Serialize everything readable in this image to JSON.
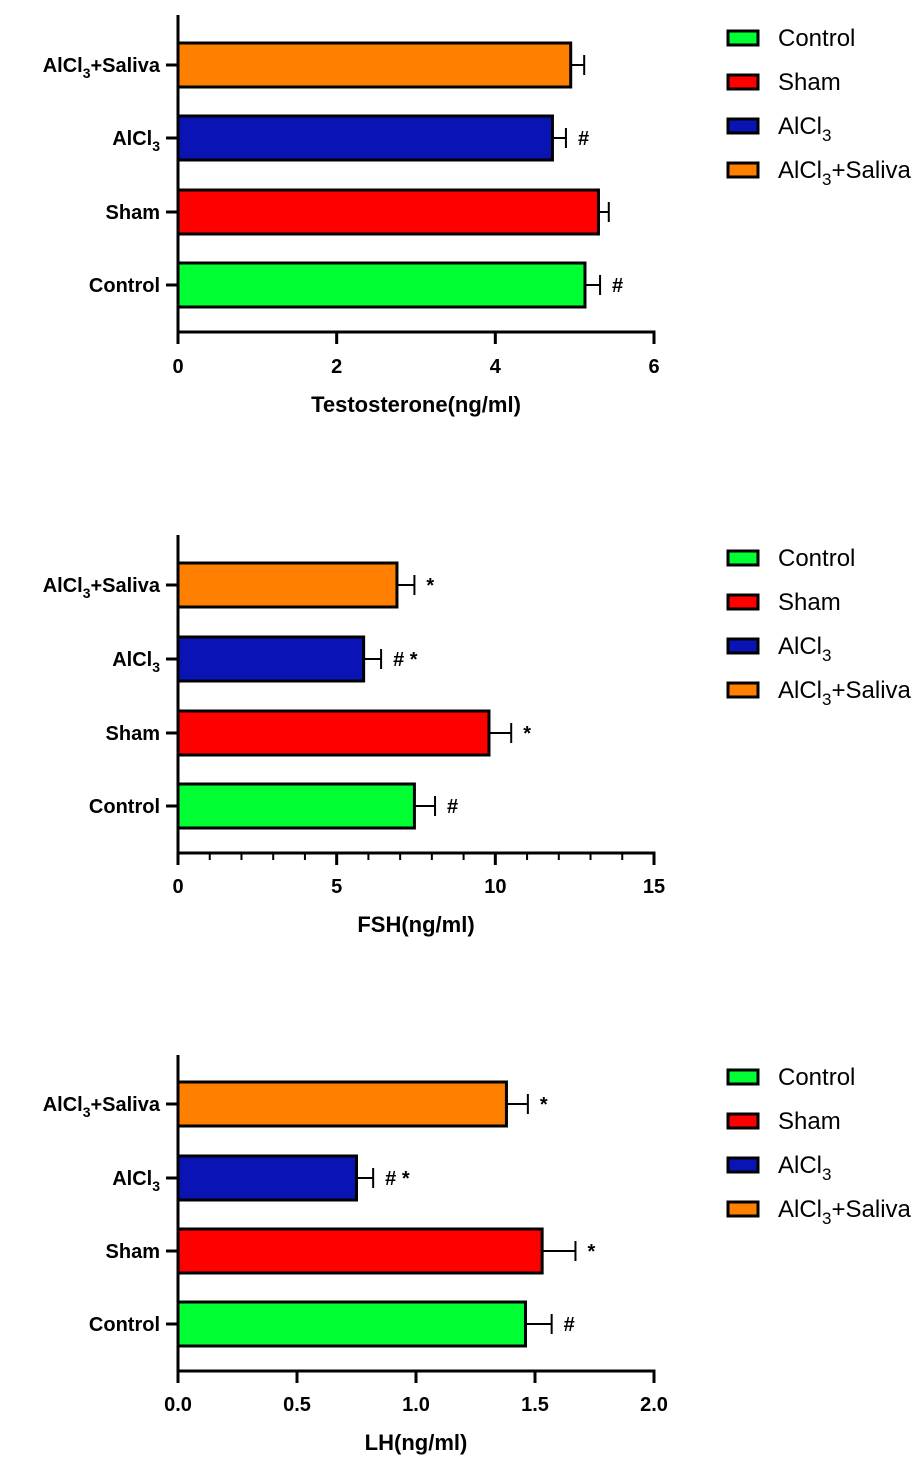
{
  "chart_data": [
    {
      "type": "bar",
      "orientation": "horizontal",
      "xlabel": "Testosterone(ng/ml)",
      "xlim": [
        0,
        6
      ],
      "xticks": [
        0,
        2,
        4,
        6
      ],
      "xtick_labels": [
        "0",
        "2",
        "4",
        "6"
      ],
      "categories": [
        {
          "base": "AlCl",
          "sub": "3",
          "tail": "+Saliva"
        },
        {
          "base": "AlCl",
          "sub": "3",
          "tail": ""
        },
        {
          "base": "Sham",
          "sub": "",
          "tail": ""
        },
        {
          "base": "Control",
          "sub": "",
          "tail": ""
        }
      ],
      "values": [
        4.95,
        4.72,
        5.3,
        5.13
      ],
      "errors": [
        0.17,
        0.17,
        0.13,
        0.19
      ],
      "colors": [
        "#FF8000",
        "#0A14B4",
        "#FF0000",
        "#00FF33"
      ],
      "annotations": [
        "",
        "#",
        "",
        "#"
      ],
      "legend": {
        "placement": "right",
        "entries": [
          {
            "base": "Control",
            "sub": "",
            "tail": "",
            "color": "#00FF33"
          },
          {
            "base": "Sham",
            "sub": "",
            "tail": "",
            "color": "#FF0000"
          },
          {
            "base": "AlCl",
            "sub": "3",
            "tail": "",
            "color": "#0A14B4"
          },
          {
            "base": "AlCl",
            "sub": "3",
            "tail": "+Saliva",
            "color": "#FF8000"
          }
        ]
      }
    },
    {
      "type": "bar",
      "orientation": "horizontal",
      "xlabel": "FSH(ng/ml)",
      "xlim": [
        0,
        15
      ],
      "xticks": [
        0,
        5,
        10,
        15
      ],
      "xtick_labels": [
        "0",
        "5",
        "10",
        "15"
      ],
      "minor_ticks": 1,
      "categories": [
        {
          "base": "AlCl",
          "sub": "3",
          "tail": "+Saliva"
        },
        {
          "base": "AlCl",
          "sub": "3",
          "tail": ""
        },
        {
          "base": "Sham",
          "sub": "",
          "tail": ""
        },
        {
          "base": "Control",
          "sub": "",
          "tail": ""
        }
      ],
      "values": [
        6.9,
        5.85,
        9.8,
        7.45
      ],
      "errors": [
        0.55,
        0.55,
        0.7,
        0.65
      ],
      "colors": [
        "#FF8000",
        "#0A14B4",
        "#FF0000",
        "#00FF33"
      ],
      "annotations": [
        "*",
        "# *",
        "*",
        "#"
      ],
      "legend": {
        "placement": "right",
        "entries": [
          {
            "base": "Control",
            "sub": "",
            "tail": "",
            "color": "#00FF33"
          },
          {
            "base": "Sham",
            "sub": "",
            "tail": "",
            "color": "#FF0000"
          },
          {
            "base": "AlCl",
            "sub": "3",
            "tail": "",
            "color": "#0A14B4"
          },
          {
            "base": "AlCl",
            "sub": "3",
            "tail": "+Saliva",
            "color": "#FF8000"
          }
        ]
      }
    },
    {
      "type": "bar",
      "orientation": "horizontal",
      "xlabel": "LH(ng/ml)",
      "xlim": [
        0,
        2
      ],
      "xticks": [
        0,
        0.5,
        1,
        1.5,
        2
      ],
      "xtick_labels": [
        "0.0",
        "0.5",
        "1.0",
        "1.5",
        "2.0"
      ],
      "categories": [
        {
          "base": "AlCl",
          "sub": "3",
          "tail": "+Saliva"
        },
        {
          "base": "AlCl",
          "sub": "3",
          "tail": ""
        },
        {
          "base": "Sham",
          "sub": "",
          "tail": ""
        },
        {
          "base": "Control",
          "sub": "",
          "tail": ""
        }
      ],
      "values": [
        1.38,
        0.75,
        1.53,
        1.46
      ],
      "errors": [
        0.09,
        0.07,
        0.14,
        0.11
      ],
      "colors": [
        "#FF8000",
        "#0A14B4",
        "#FF0000",
        "#00FF33"
      ],
      "annotations": [
        "*",
        "# *",
        "*",
        "#"
      ],
      "legend": {
        "placement": "right",
        "entries": [
          {
            "base": "Control",
            "sub": "",
            "tail": "",
            "color": "#00FF33"
          },
          {
            "base": "Sham",
            "sub": "",
            "tail": "",
            "color": "#FF0000"
          },
          {
            "base": "AlCl",
            "sub": "3",
            "tail": "",
            "color": "#0A14B4"
          },
          {
            "base": "AlCl",
            "sub": "3",
            "tail": "+Saliva",
            "color": "#FF8000"
          }
        ]
      }
    }
  ]
}
